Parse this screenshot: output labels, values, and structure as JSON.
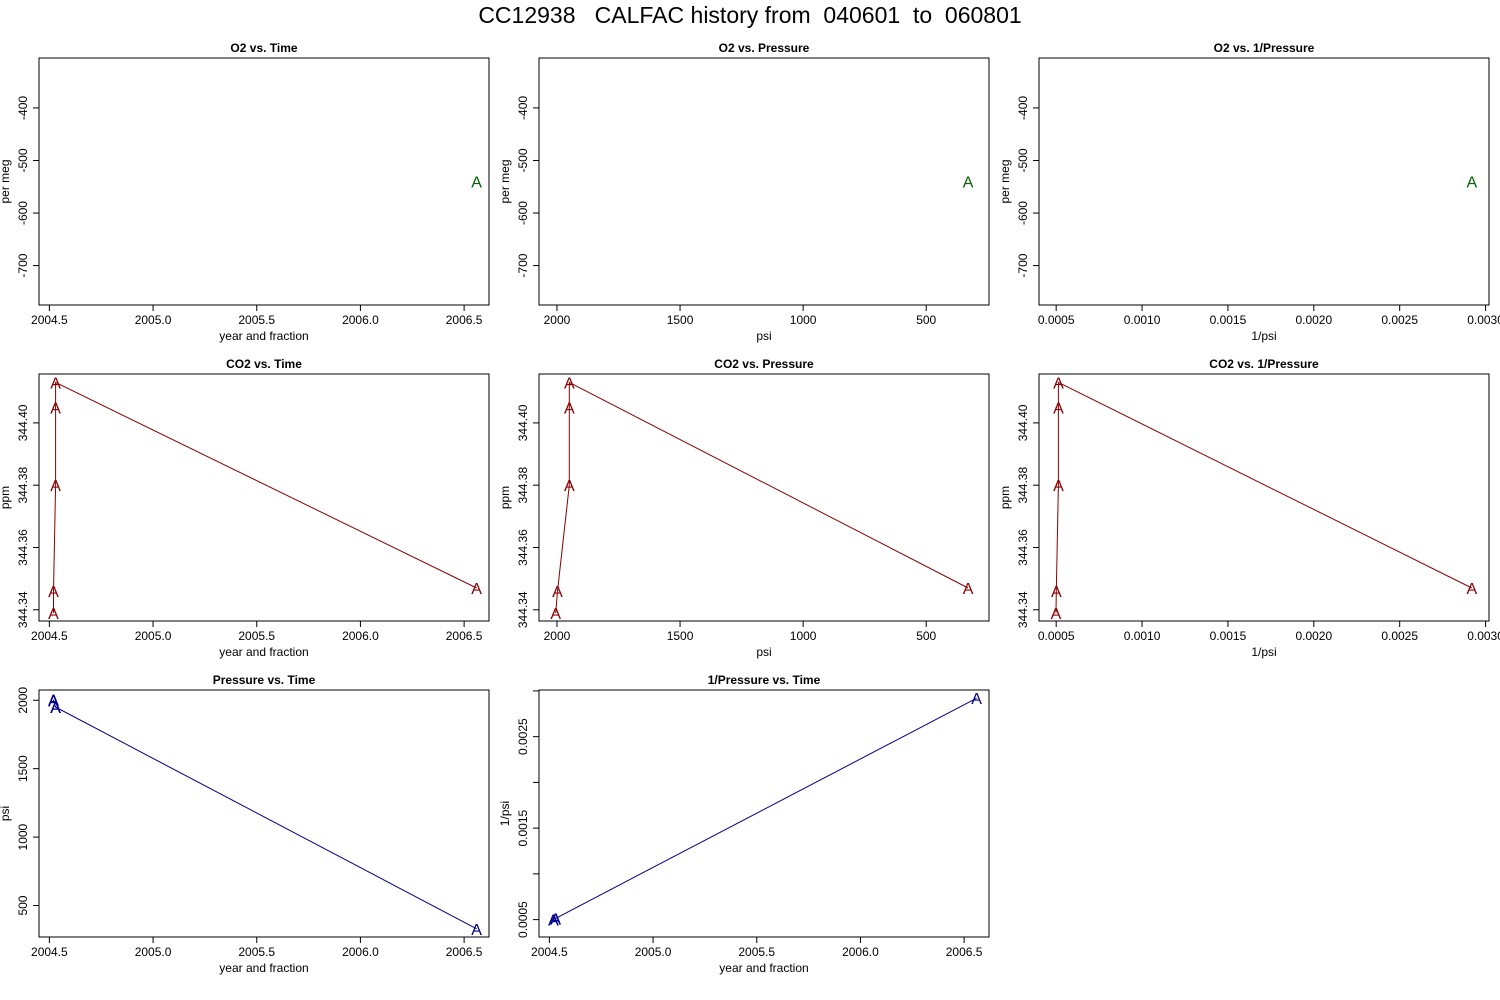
{
  "title": "CC12938   CALFAC history from  040601  to  060801",
  "colors": {
    "o2": "#006400",
    "co2": "#8b0000",
    "pressure": "#00008b"
  },
  "chart_data": [
    {
      "type": "scatter",
      "title": "O2 vs. Time",
      "xlabel": "year and fraction",
      "ylabel": "per meg",
      "xlim": [
        2004.45,
        2006.62
      ],
      "ylim": [
        -775,
        -305
      ],
      "reverse_x": false,
      "xticks": [
        2004.5,
        2005.0,
        2005.5,
        2006.0,
        2006.5
      ],
      "xtick_labels": [
        "2004.5",
        "2005.0",
        "2005.5",
        "2006.0",
        "2006.5"
      ],
      "yticks": [
        -700,
        -600,
        -500,
        -400
      ],
      "ytick_labels": [
        "-700",
        "-600",
        "-500",
        "-400"
      ],
      "marker": "A",
      "color": "#006400",
      "connect": false,
      "x": [
        2006.56
      ],
      "y": [
        -540
      ]
    },
    {
      "type": "scatter",
      "title": "O2 vs. Pressure",
      "xlabel": "psi",
      "ylabel": "per meg",
      "xlim": [
        2073,
        245
      ],
      "ylim": [
        -775,
        -305
      ],
      "reverse_x": true,
      "xticks": [
        2000,
        1500,
        1000,
        500
      ],
      "xtick_labels": [
        "2000",
        "1500",
        "1000",
        "500"
      ],
      "yticks": [
        -700,
        -600,
        -500,
        -400
      ],
      "ytick_labels": [
        "-700",
        "-600",
        "-500",
        "-400"
      ],
      "marker": "A",
      "color": "#006400",
      "connect": false,
      "x": [
        330
      ],
      "y": [
        -540
      ]
    },
    {
      "type": "scatter",
      "title": "O2 vs. 1/Pressure",
      "xlabel": "1/psi",
      "ylabel": "per meg",
      "xlim": [
        0.0004,
        0.00302
      ],
      "ylim": [
        -775,
        -305
      ],
      "reverse_x": false,
      "xticks": [
        0.0005,
        0.001,
        0.0015,
        0.002,
        0.0025,
        0.003
      ],
      "xtick_labels": [
        "0.0005",
        "0.0010",
        "0.0015",
        "0.0020",
        "0.0025",
        "0.0030"
      ],
      "yticks": [
        -700,
        -600,
        -500,
        -400
      ],
      "ytick_labels": [
        "-700",
        "-600",
        "-500",
        "-400"
      ],
      "marker": "A",
      "color": "#006400",
      "connect": false,
      "x": [
        0.00292
      ],
      "y": [
        -540
      ]
    },
    {
      "type": "line",
      "title": "CO2 vs. Time",
      "xlabel": "year and fraction",
      "ylabel": "ppm",
      "xlim": [
        2004.45,
        2006.62
      ],
      "ylim": [
        344.3364,
        344.4157
      ],
      "reverse_x": false,
      "xticks": [
        2004.5,
        2005.0,
        2005.5,
        2006.0,
        2006.5
      ],
      "xtick_labels": [
        "2004.5",
        "2005.0",
        "2005.5",
        "2006.0",
        "2006.5"
      ],
      "yticks": [
        344.34,
        344.36,
        344.38,
        344.4
      ],
      "ytick_labels": [
        "344.34",
        "344.36",
        "344.38",
        "344.40"
      ],
      "marker": "A",
      "color": "#8b0000",
      "connect": true,
      "x": [
        2004.52,
        2004.52,
        2004.53,
        2004.53,
        2004.53,
        2006.56
      ],
      "y": [
        344.339,
        344.346,
        344.38,
        344.405,
        344.413,
        344.347
      ]
    },
    {
      "type": "line",
      "title": "CO2 vs. Pressure",
      "xlabel": "psi",
      "ylabel": "ppm",
      "xlim": [
        2073,
        245
      ],
      "ylim": [
        344.3364,
        344.4157
      ],
      "reverse_x": true,
      "xticks": [
        2000,
        1500,
        1000,
        500
      ],
      "xtick_labels": [
        "2000",
        "1500",
        "1000",
        "500"
      ],
      "yticks": [
        344.34,
        344.36,
        344.38,
        344.4
      ],
      "ytick_labels": [
        "344.34",
        "344.36",
        "344.38",
        "344.40"
      ],
      "marker": "A",
      "color": "#8b0000",
      "connect": true,
      "x": [
        2005,
        1998,
        1950,
        1950,
        1950,
        330
      ],
      "y": [
        344.339,
        344.346,
        344.38,
        344.405,
        344.413,
        344.347
      ]
    },
    {
      "type": "line",
      "title": "CO2 vs. 1/Pressure",
      "xlabel": "1/psi",
      "ylabel": "ppm",
      "xlim": [
        0.0004,
        0.00302
      ],
      "ylim": [
        344.3364,
        344.4157
      ],
      "reverse_x": false,
      "xticks": [
        0.0005,
        0.001,
        0.0015,
        0.002,
        0.0025,
        0.003
      ],
      "xtick_labels": [
        "0.0005",
        "0.0010",
        "0.0015",
        "0.0020",
        "0.0025",
        "0.0030"
      ],
      "yticks": [
        344.34,
        344.36,
        344.38,
        344.4
      ],
      "ytick_labels": [
        "344.34",
        "344.36",
        "344.38",
        "344.40"
      ],
      "marker": "A",
      "color": "#8b0000",
      "connect": true,
      "x": [
        0.000499,
        0.000501,
        0.000513,
        0.000513,
        0.000513,
        0.00292
      ],
      "y": [
        344.339,
        344.346,
        344.38,
        344.405,
        344.413,
        344.347
      ]
    },
    {
      "type": "line",
      "title": "Pressure vs. Time",
      "xlabel": "year and fraction",
      "ylabel": "psi",
      "xlim": [
        2004.45,
        2006.62
      ],
      "ylim": [
        270,
        2075
      ],
      "reverse_x": false,
      "xticks": [
        2004.5,
        2005.0,
        2005.5,
        2006.0,
        2006.5
      ],
      "xtick_labels": [
        "2004.5",
        "2005.0",
        "2005.5",
        "2006.0",
        "2006.5"
      ],
      "yticks": [
        500,
        1000,
        1500,
        2000
      ],
      "ytick_labels": [
        "500",
        "1000",
        "1500",
        "2000"
      ],
      "marker": "A",
      "color": "#00008b",
      "connect": true,
      "x": [
        2004.52,
        2004.52,
        2004.53,
        2004.53,
        2004.53,
        2006.56
      ],
      "y": [
        2005,
        1998,
        1950,
        1950,
        1950,
        330
      ]
    },
    {
      "type": "line",
      "title": "1/Pressure vs. Time",
      "xlabel": "year and fraction",
      "ylabel": "1/psi",
      "xlim": [
        2004.45,
        2006.62
      ],
      "ylim": [
        0.00031,
        0.00301
      ],
      "reverse_x": false,
      "xticks": [
        2004.5,
        2005.0,
        2005.5,
        2006.0,
        2006.5
      ],
      "xtick_labels": [
        "2004.5",
        "2005.0",
        "2005.5",
        "2006.0",
        "2006.5"
      ],
      "yticks": [
        0.0005,
        0.001,
        0.0015,
        0.002,
        0.0025,
        0.003
      ],
      "ytick_labels": [
        "0.0005",
        "",
        "0.0015",
        "",
        "0.0025",
        ""
      ],
      "marker": "A",
      "color": "#00008b",
      "connect": true,
      "x": [
        2004.52,
        2004.52,
        2004.53,
        2004.53,
        2004.53,
        2006.56
      ],
      "y": [
        0.000499,
        0.000501,
        0.000513,
        0.000513,
        0.000513,
        0.00292
      ]
    }
  ]
}
